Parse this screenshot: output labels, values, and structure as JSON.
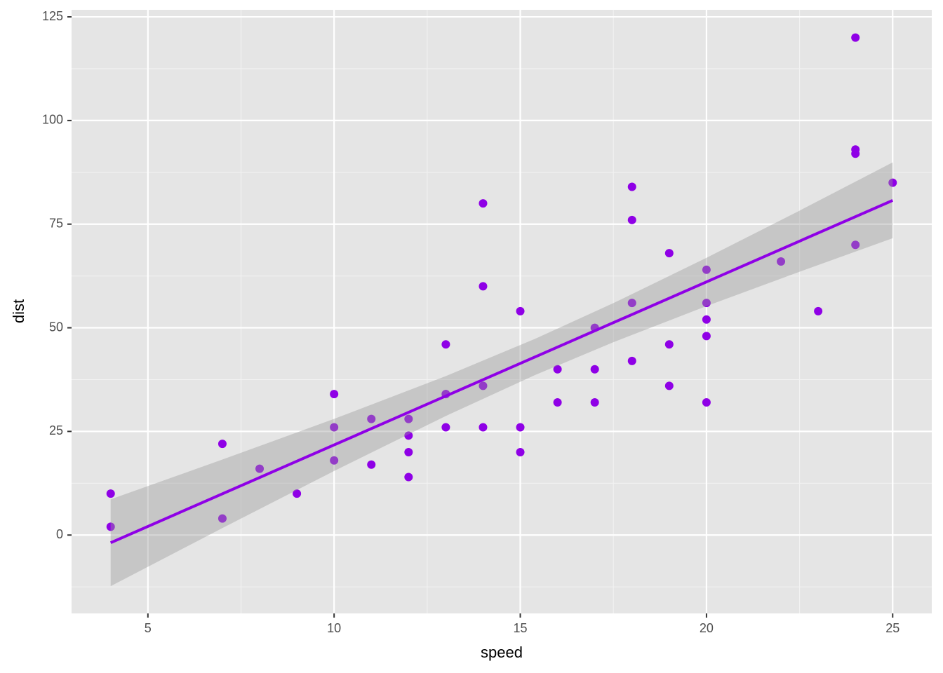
{
  "chart_data": {
    "type": "scatter",
    "x_label": "speed",
    "y_label": "dist",
    "x": [
      4,
      4,
      7,
      7,
      8,
      9,
      10,
      10,
      10,
      11,
      11,
      12,
      12,
      12,
      12,
      13,
      13,
      13,
      13,
      14,
      14,
      14,
      14,
      15,
      15,
      15,
      16,
      16,
      17,
      17,
      17,
      18,
      18,
      18,
      18,
      19,
      19,
      19,
      20,
      20,
      20,
      20,
      20,
      22,
      23,
      24,
      24,
      24,
      24,
      25
    ],
    "values": [
      2,
      10,
      4,
      22,
      16,
      10,
      18,
      26,
      34,
      17,
      28,
      14,
      20,
      24,
      28,
      26,
      34,
      34,
      46,
      26,
      36,
      60,
      80,
      20,
      26,
      54,
      32,
      40,
      32,
      40,
      50,
      42,
      56,
      76,
      84,
      36,
      46,
      68,
      32,
      48,
      52,
      56,
      64,
      66,
      54,
      70,
      92,
      93,
      120,
      85
    ],
    "color": "#8f00e6",
    "fit": {
      "x": [
        4,
        25
      ],
      "y": [
        -1.85,
        80.73
      ],
      "color": "#8f00e6"
    },
    "band": {
      "x": [
        4,
        7,
        10,
        13,
        15.4,
        17.5,
        20,
        22.5,
        25
      ],
      "lower": [
        -12.33,
        1.68,
        15.46,
        28.73,
        38.61,
        46.52,
        55.24,
        63.52,
        71.6
      ],
      "upper": [
        8.63,
        18.21,
        28.02,
        38.35,
        47.35,
        55.94,
        66.88,
        78.26,
        89.9
      ],
      "color": "#999999"
    },
    "xlim": [
      2.95,
      26.05
    ],
    "ylim": [
      -18.9,
      126.7
    ],
    "xticks": [
      5,
      10,
      15,
      20,
      25
    ],
    "yticks": [
      0,
      25,
      50,
      75,
      100,
      125
    ],
    "grid": true
  }
}
